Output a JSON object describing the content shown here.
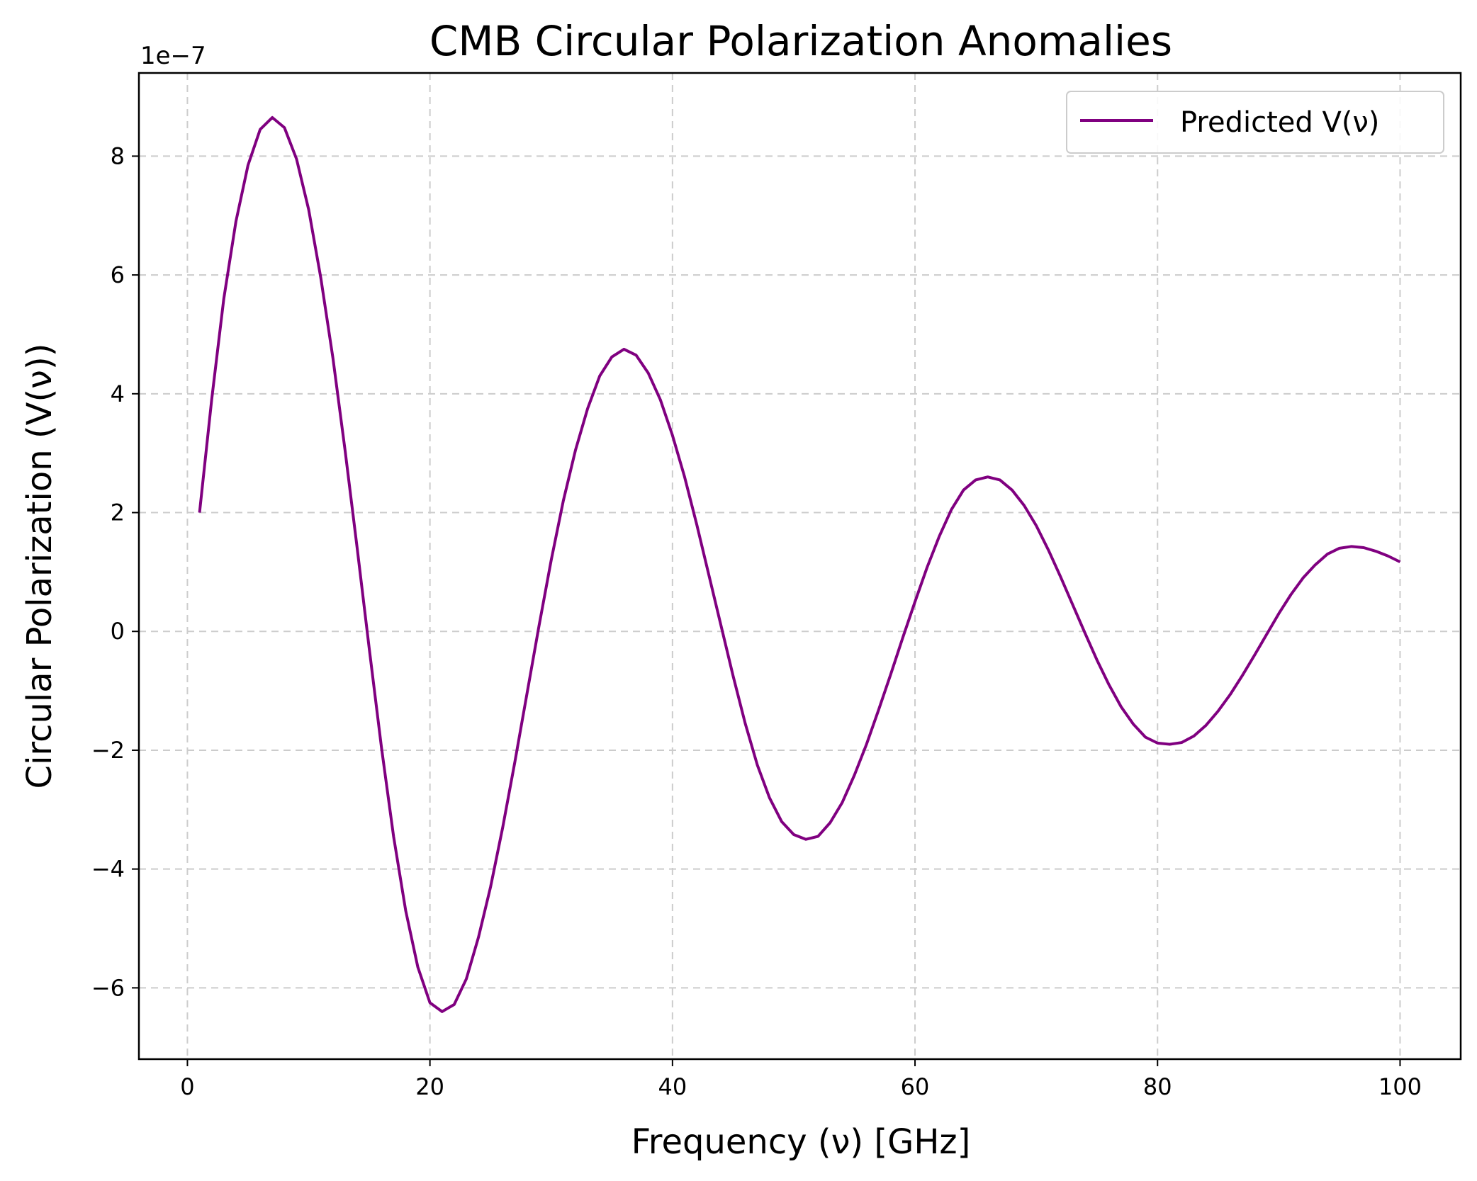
{
  "chart_data": {
    "type": "line",
    "title": "CMB Circular Polarization Anomalies",
    "xlabel": "Frequency (ν) [GHz]",
    "ylabel": "Circular Polarization (V(ν))",
    "y_offset_label": "1e−7",
    "xlim": [
      -4,
      105
    ],
    "ylim": [
      -7.2,
      9.4
    ],
    "y_scale_factor": 1e-07,
    "grid": true,
    "legend_position": "top-right",
    "x_ticks": [
      0,
      20,
      40,
      60,
      80,
      100
    ],
    "x_tick_labels": [
      "0",
      "20",
      "40",
      "60",
      "80",
      "100"
    ],
    "y_ticks": [
      -6,
      -4,
      -2,
      0,
      2,
      4,
      6,
      8
    ],
    "y_tick_labels": [
      "−6",
      "−4",
      "−2",
      "0",
      "2",
      "4",
      "6",
      "8"
    ],
    "series": [
      {
        "name": "Predicted V(ν)",
        "color": "#800080",
        "x": [
          1,
          2,
          3,
          4,
          5,
          6,
          7,
          8,
          9,
          10,
          11,
          12,
          13,
          14,
          15,
          16,
          17,
          18,
          19,
          20,
          21,
          22,
          23,
          24,
          25,
          26,
          27,
          28,
          29,
          30,
          31,
          32,
          33,
          34,
          35,
          36,
          37,
          38,
          39,
          40,
          41,
          42,
          43,
          44,
          45,
          46,
          47,
          48,
          49,
          50,
          51,
          52,
          53,
          54,
          55,
          56,
          57,
          58,
          59,
          60,
          61,
          62,
          63,
          64,
          65,
          66,
          67,
          68,
          69,
          70,
          71,
          72,
          73,
          74,
          75,
          76,
          77,
          78,
          79,
          80,
          81,
          82,
          83,
          84,
          85,
          86,
          87,
          88,
          89,
          90,
          91,
          92,
          93,
          94,
          95,
          96,
          97,
          98,
          99,
          100
        ],
        "values": [
          2.0,
          3.9,
          5.6,
          6.9,
          7.85,
          8.45,
          8.65,
          8.48,
          7.95,
          7.1,
          5.95,
          4.6,
          3.05,
          1.4,
          -0.3,
          -1.95,
          -3.45,
          -4.7,
          -5.65,
          -6.25,
          -6.4,
          -6.28,
          -5.85,
          -5.15,
          -4.3,
          -3.3,
          -2.2,
          -1.05,
          0.1,
          1.2,
          2.2,
          3.05,
          3.75,
          4.3,
          4.62,
          4.75,
          4.65,
          4.35,
          3.9,
          3.3,
          2.6,
          1.8,
          0.95,
          0.1,
          -0.75,
          -1.55,
          -2.25,
          -2.8,
          -3.2,
          -3.42,
          -3.5,
          -3.45,
          -3.22,
          -2.88,
          -2.42,
          -1.9,
          -1.32,
          -0.72,
          -0.1,
          0.5,
          1.08,
          1.6,
          2.05,
          2.38,
          2.55,
          2.6,
          2.55,
          2.38,
          2.12,
          1.78,
          1.37,
          0.92,
          0.45,
          -0.02,
          -0.48,
          -0.9,
          -1.27,
          -1.56,
          -1.78,
          -1.88,
          -1.9,
          -1.87,
          -1.76,
          -1.58,
          -1.34,
          -1.06,
          -0.74,
          -0.4,
          -0.05,
          0.3,
          0.62,
          0.9,
          1.12,
          1.3,
          1.4,
          1.43,
          1.41,
          1.35,
          1.27,
          1.17
        ]
      }
    ]
  }
}
